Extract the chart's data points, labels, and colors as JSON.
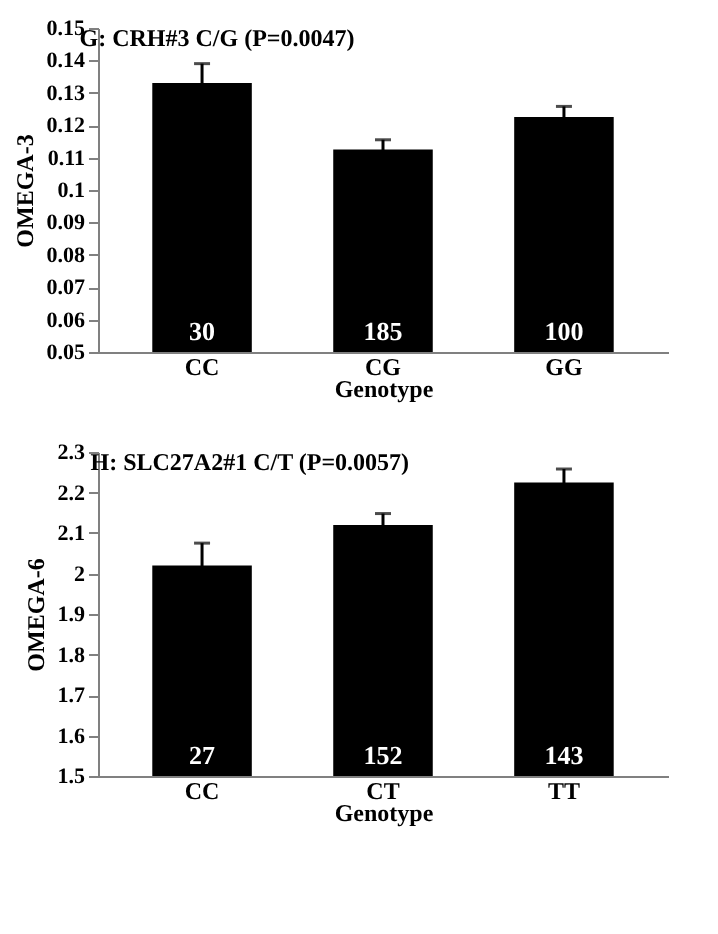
{
  "chart_data": [
    {
      "type": "bar",
      "title": "G: CRH#3 C/G    (P=0.0047)",
      "xlabel": "Genotype",
      "ylabel": "OMEGA-3",
      "categories": [
        "CC",
        "CG",
        "GG"
      ],
      "series": [
        {
          "color": "#000000",
          "values": [
            0.133,
            0.1125,
            0.1225
          ],
          "errors": [
            0.006,
            0.003,
            0.0033
          ]
        }
      ],
      "annotations": [
        "30",
        "185",
        "100"
      ],
      "ylim": [
        0.05,
        0.15
      ],
      "yticks": [
        0.05,
        0.06,
        0.07,
        0.08,
        0.09,
        {
          "value": 0.1,
          "label": "0.1"
        },
        0.11,
        0.12,
        0.13,
        0.14,
        0.15
      ],
      "grid": false
    },
    {
      "type": "bar",
      "title": "H: SLC27A2#1 C/T    (P=0.0057)",
      "xlabel": "Genotype",
      "ylabel": "OMEGA-6",
      "categories": [
        "CC",
        "CT",
        "TT"
      ],
      "series": [
        {
          "color": "#000000",
          "values": [
            2.02,
            2.12,
            2.225
          ],
          "errors": [
            0.055,
            0.028,
            0.033
          ]
        }
      ],
      "annotations": [
        "27",
        "152",
        "143"
      ],
      "ylim": [
        1.5,
        2.3
      ],
      "yticks": [
        1.5,
        1.6,
        1.7,
        1.8,
        1.9,
        {
          "value": 2,
          "label": "2"
        },
        2.1,
        2.2,
        2.3
      ],
      "grid": false
    }
  ]
}
